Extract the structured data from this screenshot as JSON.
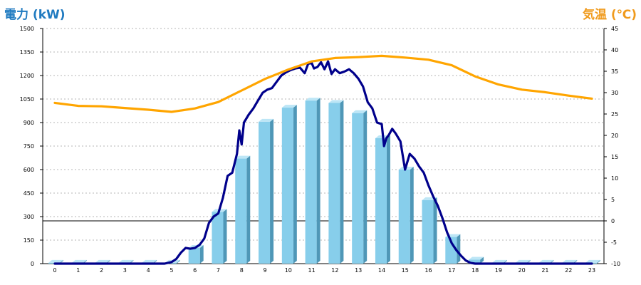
{
  "colors": {
    "left_title": "#1f7ac0",
    "right_title": "#f09a1c",
    "bar_front": "#87ceeb",
    "bar_side": "#4f97b7",
    "bar_top": "#bde6f6",
    "power_line": "#00008b",
    "temp_line": "#ffa500",
    "grid": "#b4b4b4"
  },
  "chart_data": {
    "type": "bar",
    "title_left": "電力 (kW)",
    "title_right": "気温 (℃)",
    "x": [
      0,
      1,
      2,
      3,
      4,
      5,
      6,
      7,
      8,
      9,
      10,
      11,
      12,
      13,
      14,
      15,
      16,
      17,
      18,
      19,
      20,
      21,
      22,
      23
    ],
    "y_left": {
      "min": 0,
      "max": 1500,
      "ticks": [
        0,
        150,
        300,
        450,
        600,
        750,
        900,
        1050,
        1200,
        1350,
        1500
      ]
    },
    "y_right": {
      "min": -10,
      "max": 45,
      "ticks": [
        -10,
        -5,
        0,
        5,
        10,
        15,
        20,
        25,
        30,
        35,
        40,
        45
      ]
    },
    "grid": true,
    "series": [
      {
        "kind": "bar",
        "axis": "left",
        "values": [
          5,
          5,
          5,
          5,
          5,
          5,
          100,
          330,
          670,
          905,
          995,
          1040,
          1025,
          960,
          800,
          600,
          405,
          170,
          25,
          5,
          5,
          5,
          5,
          5
        ]
      },
      {
        "kind": "line",
        "axis": "left",
        "x": [
          0,
          1,
          2,
          3,
          4,
          4.7,
          5,
          5.2,
          5.4,
          5.6,
          5.8,
          6,
          6.2,
          6.4,
          6.6,
          6.8,
          7,
          7.2,
          7.4,
          7.6,
          7.8,
          7.9,
          8,
          8.1,
          8.3,
          8.5,
          8.7,
          8.9,
          9.1,
          9.3,
          9.5,
          9.7,
          9.9,
          10.1,
          10.3,
          10.5,
          10.7,
          10.85,
          11,
          11.1,
          11.25,
          11.4,
          11.55,
          11.7,
          11.85,
          12,
          12.2,
          12.4,
          12.6,
          12.8,
          13,
          13.2,
          13.4,
          13.6,
          13.8,
          14,
          14.1,
          14.2,
          14.3,
          14.45,
          14.6,
          14.8,
          15,
          15.2,
          15.4,
          15.6,
          15.8,
          16,
          16.2,
          16.4,
          16.6,
          16.8,
          17,
          17.2,
          17.4,
          17.6,
          17.8,
          18,
          18.5,
          19,
          20,
          21,
          22,
          23
        ],
        "values": [
          0,
          0,
          0,
          0,
          0,
          0,
          10,
          30,
          70,
          100,
          95,
          100,
          120,
          160,
          260,
          300,
          320,
          420,
          560,
          580,
          700,
          850,
          760,
          900,
          950,
          990,
          1040,
          1090,
          1110,
          1120,
          1160,
          1200,
          1220,
          1235,
          1245,
          1250,
          1215,
          1275,
          1280,
          1245,
          1255,
          1285,
          1240,
          1290,
          1210,
          1240,
          1215,
          1225,
          1240,
          1215,
          1180,
          1130,
          1030,
          990,
          900,
          890,
          750,
          800,
          820,
          860,
          830,
          780,
          600,
          700,
          670,
          620,
          580,
          500,
          430,
          370,
          290,
          200,
          130,
          85,
          50,
          20,
          5,
          0,
          0,
          0,
          0,
          0,
          0,
          0
        ]
      },
      {
        "kind": "line",
        "axis": "right",
        "x": [
          0,
          1,
          2,
          3,
          4,
          5,
          6,
          7,
          8,
          9,
          10,
          11,
          12,
          13,
          14,
          15,
          16,
          17,
          18,
          19,
          20,
          21,
          22,
          23
        ],
        "values": [
          27.6,
          26.9,
          26.8,
          26.4,
          26.0,
          25.5,
          26.3,
          27.8,
          30.5,
          33.2,
          35.4,
          37.3,
          38.1,
          38.3,
          38.6,
          38.2,
          37.7,
          36.4,
          33.8,
          31.9,
          30.7,
          30.1,
          29.3,
          28.6
        ]
      }
    ]
  }
}
